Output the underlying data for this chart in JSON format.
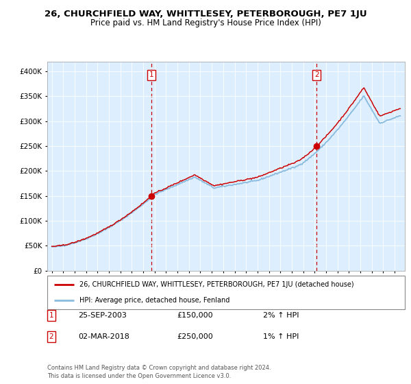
{
  "title": "26, CHURCHFIELD WAY, WHITTLESEY, PETERBOROUGH, PE7 1JU",
  "subtitle": "Price paid vs. HM Land Registry's House Price Index (HPI)",
  "hpi_label": "HPI: Average price, detached house, Fenland",
  "property_label": "26, CHURCHFIELD WAY, WHITTLESEY, PETERBOROUGH, PE7 1JU (detached house)",
  "sale1_date": "25-SEP-2003",
  "sale1_price": 150000,
  "sale1_note": "2% ↑ HPI",
  "sale2_date": "02-MAR-2018",
  "sale2_price": 250000,
  "sale2_note": "1% ↑ HPI",
  "footer": "Contains HM Land Registry data © Crown copyright and database right 2024.\nThis data is licensed under the Open Government Licence v3.0.",
  "ylim": [
    0,
    420000
  ],
  "yticks": [
    0,
    50000,
    100000,
    150000,
    200000,
    250000,
    300000,
    350000,
    400000
  ],
  "hpi_color": "#88bbdd",
  "property_color": "#cc0000",
  "vline_color": "#cc0000",
  "plot_bg": "#ddeeff",
  "marker1_year": 2003.73,
  "marker2_year": 2018.17,
  "marker1_price": 150000,
  "marker2_price": 250000
}
